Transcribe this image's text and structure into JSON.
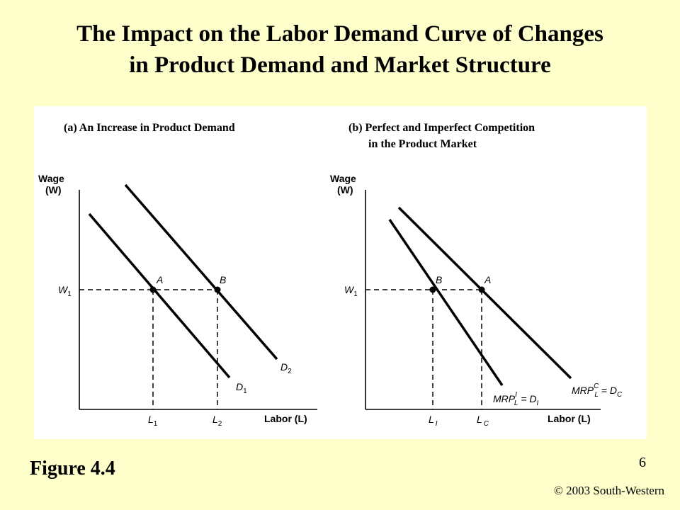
{
  "slide": {
    "title_line1": "The Impact on the Labor Demand Curve of Changes",
    "title_line2": "in Product Demand and Market Structure",
    "caption": "Figure 4.4",
    "page_number": "6",
    "copyright": "© 2003 South-Western"
  },
  "panel_a": {
    "title": "(a) An Increase in Product Demand",
    "y_axis": {
      "label_line1": "Wage",
      "label_line2": "(W)"
    },
    "x_axis": {
      "label": "Labor (L)"
    },
    "y_tick": {
      "base": "W",
      "sub": "1"
    },
    "x_ticks": [
      {
        "base": "L",
        "sub": "1"
      },
      {
        "base": "L",
        "sub": "2"
      }
    ],
    "points": [
      {
        "label": "A"
      },
      {
        "label": "B"
      }
    ],
    "curves": [
      {
        "base": "D",
        "sub": "1"
      },
      {
        "base": "D",
        "sub": "2"
      }
    ]
  },
  "panel_b": {
    "title_line1": "(b) Perfect and Imperfect Competition",
    "title_line2": "in the Product Market",
    "y_axis": {
      "label_line1": "Wage",
      "label_line2": "(W)"
    },
    "x_axis": {
      "label": "Labor (L)"
    },
    "y_tick": {
      "base": "W",
      "sub": "1"
    },
    "x_ticks": [
      {
        "base": "L",
        "sub": "I"
      },
      {
        "base": "L",
        "sub": "C"
      }
    ],
    "points": [
      {
        "label": "B"
      },
      {
        "label": "A"
      }
    ],
    "curves": [
      {
        "mrp": "MRP",
        "sup": "I",
        "sub": "L",
        "eq": " = D",
        "dsub": "I"
      },
      {
        "mrp": "MRP",
        "sup": "C",
        "sub": "L",
        "eq": " = D",
        "dsub": "C"
      }
    ]
  }
}
